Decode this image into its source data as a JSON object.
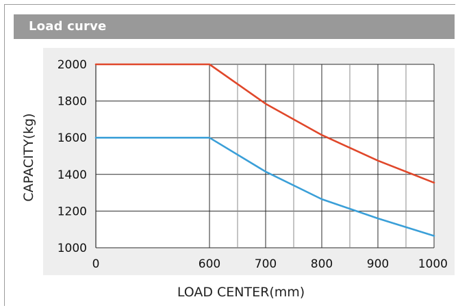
{
  "header": {
    "title": "Load curve"
  },
  "chart_data": {
    "type": "line",
    "title": "Load curve",
    "xlabel": "LOAD CENTER(mm)",
    "ylabel": "CAPACITY(kg)",
    "xlim": [
      0,
      1000
    ],
    "ylim": [
      1000,
      2000
    ],
    "x_ticks": [
      0,
      600,
      700,
      800,
      900,
      1000
    ],
    "x_tick_labels": [
      "0",
      "600",
      "700",
      "800",
      "900",
      "1000"
    ],
    "y_ticks": [
      1000,
      1200,
      1400,
      1600,
      1800,
      2000
    ],
    "y_tick_labels": [
      "1000",
      "1200",
      "1400",
      "1600",
      "1800",
      "2000"
    ],
    "x_axis_break": "between 0 and 600",
    "vertical_gridlines": [
      600,
      650,
      700,
      750,
      800,
      850,
      900,
      950,
      1000
    ],
    "grid": true,
    "legend": "none",
    "series": [
      {
        "color": "#e0472a",
        "x": [
          0,
          600,
          700,
          800,
          900,
          1000
        ],
        "y": [
          2000,
          2000,
          1785,
          1615,
          1475,
          1355
        ]
      },
      {
        "color": "#3a9fd8",
        "x": [
          0,
          600,
          700,
          800,
          900,
          1000
        ],
        "y": [
          1600,
          1600,
          1415,
          1265,
          1160,
          1065
        ]
      }
    ]
  }
}
